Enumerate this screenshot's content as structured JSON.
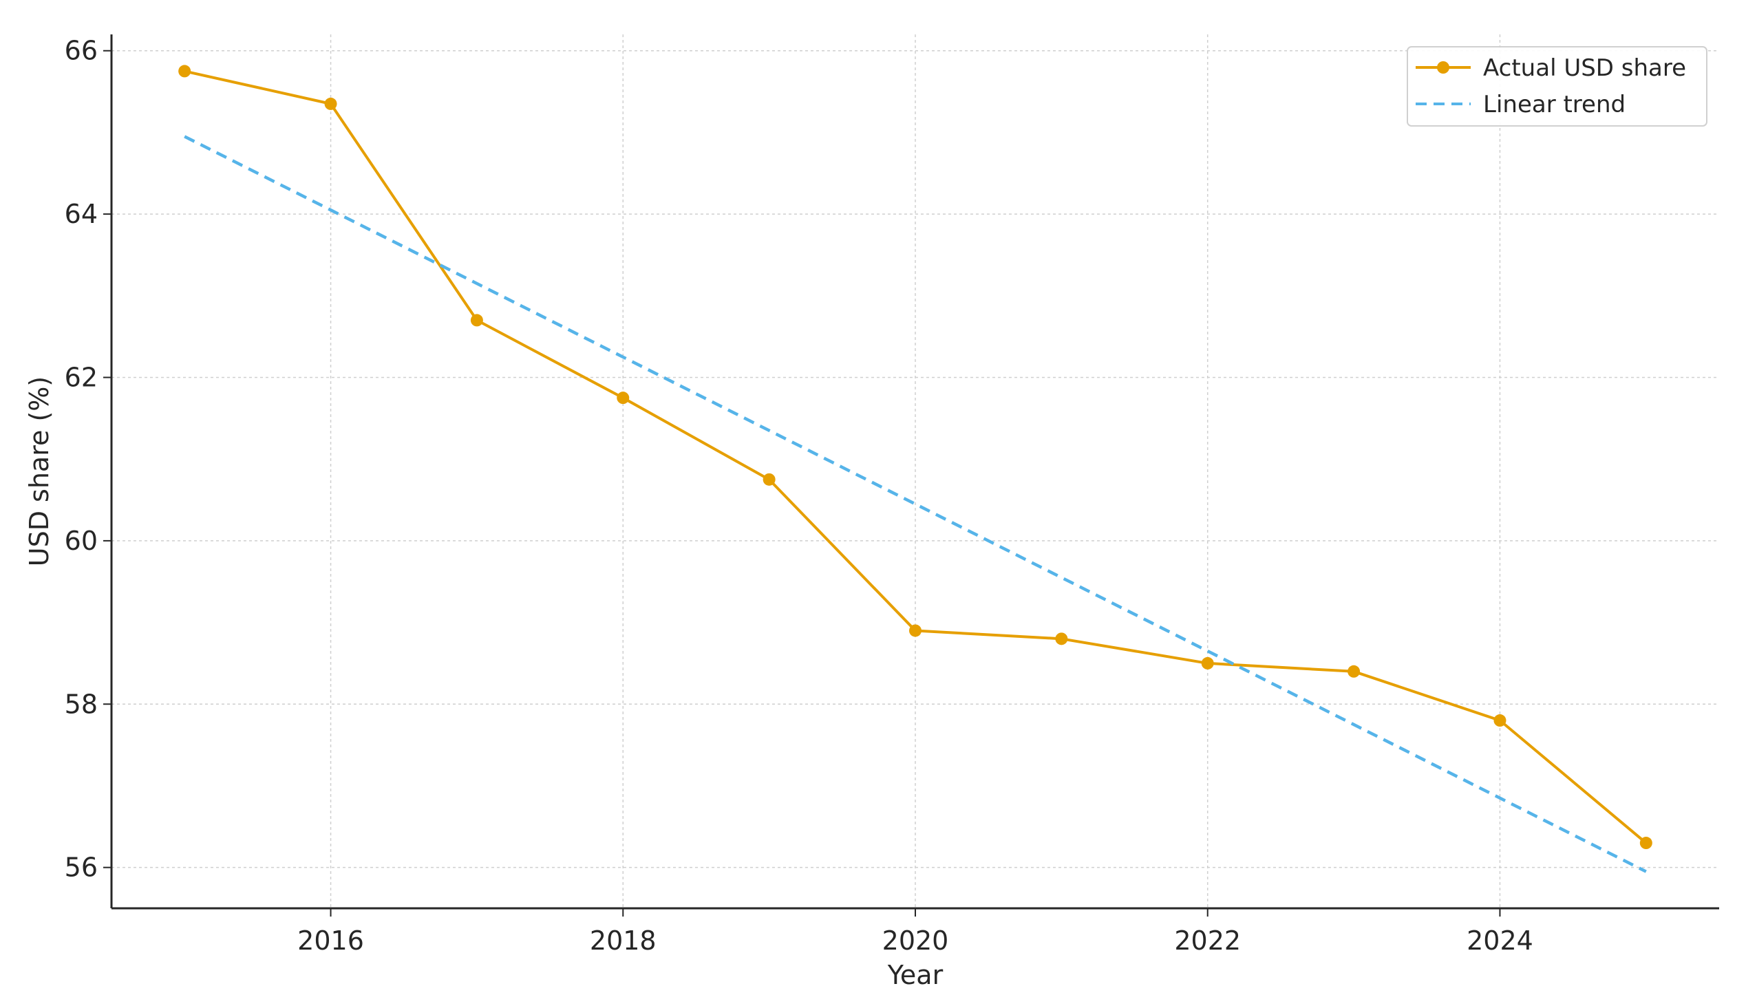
{
  "chart_data": {
    "type": "line",
    "title": "",
    "xlabel": "Year",
    "ylabel": "USD share (%)",
    "xlim": [
      2014.5,
      2025.5
    ],
    "ylim": [
      55.5,
      66.2
    ],
    "x": [
      2015,
      2016,
      2017,
      2018,
      2019,
      2020,
      2021,
      2022,
      2023,
      2024,
      2025
    ],
    "x_ticks": [
      2016,
      2018,
      2020,
      2022,
      2024
    ],
    "x_tick_labels": [
      "2016",
      "2018",
      "2020",
      "2022",
      "2024"
    ],
    "y_ticks": [
      56,
      58,
      60,
      62,
      64,
      66
    ],
    "y_tick_labels": [
      "56",
      "58",
      "60",
      "62",
      "64",
      "66"
    ],
    "grid": true,
    "legend_position": "top-right",
    "series": [
      {
        "name": "Actual USD share",
        "style": "solid-with-markers",
        "color": "#E69F00",
        "values": [
          65.75,
          65.35,
          62.7,
          61.75,
          60.75,
          58.9,
          58.8,
          58.5,
          58.4,
          57.8,
          56.3
        ]
      },
      {
        "name": "Linear trend",
        "style": "dashed",
        "color": "#56B4E9",
        "values": [
          64.95,
          64.05,
          63.15,
          62.25,
          61.35,
          60.45,
          59.55,
          58.65,
          57.75,
          56.85,
          55.95
        ]
      }
    ]
  }
}
